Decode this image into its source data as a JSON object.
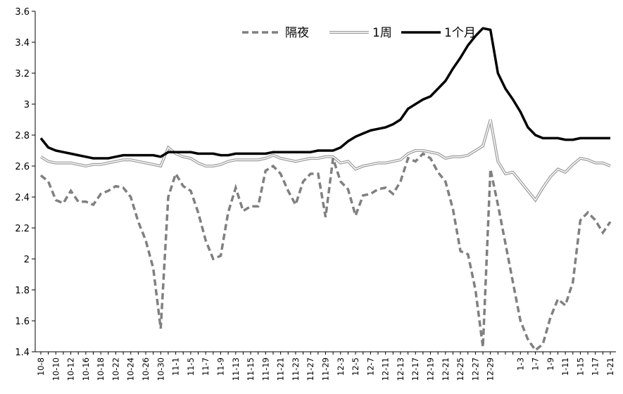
{
  "chart_data": {
    "type": "line",
    "title": "",
    "xlabel": "",
    "ylabel": "",
    "ylim": [
      1.4,
      3.6
    ],
    "yticks": [
      1.4,
      1.6,
      1.8,
      2.0,
      2.2,
      2.4,
      2.6,
      2.8,
      3.0,
      3.2,
      3.4,
      3.6
    ],
    "ytick_labels": [
      "1.4",
      "1.6",
      "1.8",
      "2",
      "2.2",
      "2.4",
      "2.6",
      "2.8",
      "3",
      "3.2",
      "3.4",
      "3.6"
    ],
    "grid": false,
    "legend_position": "top-center",
    "x": [
      "10-8",
      "10-9",
      "10-10",
      "10-11",
      "10-12",
      "10-15",
      "10-16",
      "10-17",
      "10-18",
      "10-19",
      "10-22",
      "10-23",
      "10-24",
      "10-25",
      "10-26",
      "10-29",
      "10-30",
      "10-31",
      "11-1",
      "11-2",
      "11-5",
      "11-6",
      "11-7",
      "11-8",
      "11-9",
      "11-12",
      "11-13",
      "11-14",
      "11-15",
      "11-16",
      "11-19",
      "11-20",
      "11-21",
      "11-22",
      "11-23",
      "11-26",
      "11-27",
      "11-28",
      "11-29",
      "11-30",
      "12-3",
      "12-4",
      "12-5",
      "12-6",
      "12-7",
      "12-10",
      "12-11",
      "12-12",
      "12-13",
      "12-14",
      "12-17",
      "12-18",
      "12-19",
      "12-20",
      "12-21",
      "12-24",
      "12-25",
      "12-26",
      "12-27",
      "12-28",
      "12-29",
      "12-30",
      "12-31",
      "1-2",
      "1-3",
      "1-4",
      "1-7",
      "1-8",
      "1-9",
      "1-10",
      "1-11",
      "1-14",
      "1-15",
      "1-16",
      "1-17",
      "1-18",
      "1-21"
    ],
    "x_tick_labels": [
      "10-8",
      "10-10",
      "10-12",
      "10-16",
      "10-18",
      "10-22",
      "10-24",
      "10-26",
      "10-30",
      "11-1",
      "11-5",
      "11-7",
      "11-9",
      "11-13",
      "11-15",
      "11-19",
      "11-21",
      "11-23",
      "11-27",
      "11-29",
      "12-3",
      "12-5",
      "12-7",
      "12-11",
      "12-13",
      "12-17",
      "12-19",
      "12-21",
      "12-25",
      "12-27",
      "12-29",
      "1-3",
      "1-7",
      "1-9",
      "1-11",
      "1-15",
      "1-17",
      "1-21"
    ],
    "series": [
      {
        "name": "隔夜",
        "style": "dashed",
        "color": "#808080",
        "values": [
          2.54,
          2.5,
          2.38,
          2.36,
          2.44,
          2.37,
          2.37,
          2.35,
          2.42,
          2.44,
          2.47,
          2.46,
          2.4,
          2.24,
          2.12,
          1.94,
          1.55,
          2.4,
          2.55,
          2.47,
          2.44,
          2.3,
          2.12,
          2.0,
          2.02,
          2.3,
          2.46,
          2.31,
          2.34,
          2.34,
          2.57,
          2.6,
          2.55,
          2.44,
          2.35,
          2.5,
          2.55,
          2.55,
          2.27,
          2.65,
          2.5,
          2.45,
          2.28,
          2.41,
          2.42,
          2.45,
          2.46,
          2.42,
          2.5,
          2.65,
          2.63,
          2.68,
          2.65,
          2.56,
          2.5,
          2.32,
          2.05,
          2.03,
          1.8,
          1.43,
          2.58,
          2.35,
          2.1,
          1.85,
          1.6,
          1.48,
          1.41,
          1.45,
          1.62,
          1.74,
          1.7,
          1.85,
          2.25,
          2.3,
          2.25,
          2.17,
          2.24
        ]
      },
      {
        "name": "1周",
        "style": "double",
        "color": "#a0a0a0",
        "values": [
          2.66,
          2.63,
          2.62,
          2.62,
          2.62,
          2.61,
          2.6,
          2.61,
          2.61,
          2.62,
          2.63,
          2.64,
          2.64,
          2.63,
          2.62,
          2.61,
          2.6,
          2.72,
          2.68,
          2.66,
          2.65,
          2.62,
          2.6,
          2.6,
          2.61,
          2.63,
          2.64,
          2.64,
          2.64,
          2.64,
          2.65,
          2.67,
          2.65,
          2.64,
          2.63,
          2.64,
          2.65,
          2.65,
          2.66,
          2.66,
          2.62,
          2.63,
          2.58,
          2.6,
          2.61,
          2.62,
          2.62,
          2.63,
          2.64,
          2.68,
          2.7,
          2.7,
          2.69,
          2.68,
          2.65,
          2.66,
          2.66,
          2.67,
          2.7,
          2.73,
          2.9,
          2.63,
          2.55,
          2.56,
          2.5,
          2.44,
          2.38,
          2.46,
          2.53,
          2.58,
          2.56,
          2.61,
          2.65,
          2.64,
          2.62,
          2.62,
          2.6
        ]
      },
      {
        "name": "1个月",
        "style": "solid",
        "color": "#000000",
        "values": [
          2.78,
          2.72,
          2.7,
          2.69,
          2.68,
          2.67,
          2.66,
          2.65,
          2.65,
          2.65,
          2.66,
          2.67,
          2.67,
          2.67,
          2.67,
          2.67,
          2.66,
          2.69,
          2.69,
          2.69,
          2.69,
          2.68,
          2.68,
          2.68,
          2.67,
          2.67,
          2.68,
          2.68,
          2.68,
          2.68,
          2.68,
          2.69,
          2.69,
          2.69,
          2.69,
          2.69,
          2.69,
          2.7,
          2.7,
          2.7,
          2.72,
          2.76,
          2.79,
          2.81,
          2.83,
          2.84,
          2.85,
          2.87,
          2.9,
          2.97,
          3.0,
          3.03,
          3.05,
          3.1,
          3.15,
          3.23,
          3.3,
          3.38,
          3.44,
          3.49,
          3.48,
          3.2,
          3.1,
          3.03,
          2.95,
          2.85,
          2.8,
          2.78,
          2.78,
          2.78,
          2.77,
          2.77,
          2.78,
          2.78,
          2.78,
          2.78,
          2.78
        ]
      }
    ]
  }
}
